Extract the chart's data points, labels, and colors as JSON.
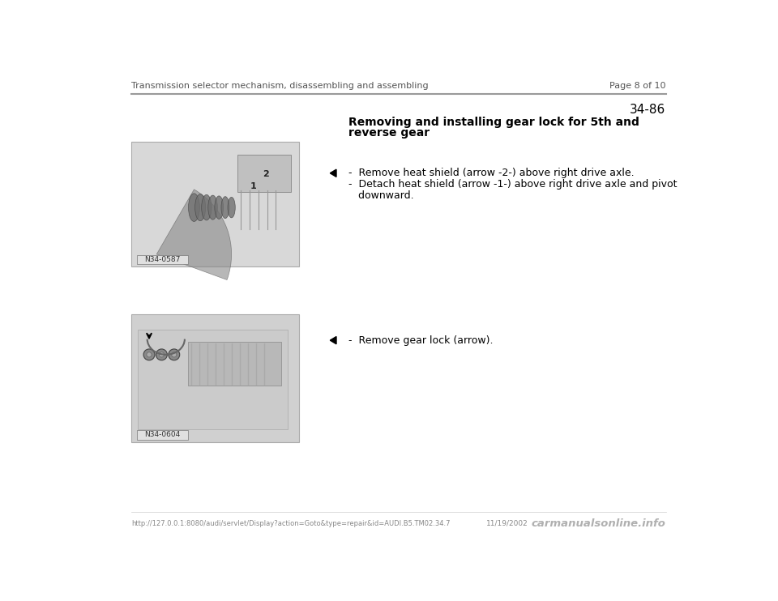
{
  "page_title_left": "Transmission selector mechanism, disassembling and assembling",
  "page_title_right": "Page 8 of 10",
  "section_number": "34-86",
  "section_heading_line1": "Removing and installing gear lock for 5th and",
  "section_heading_line2": "reverse gear",
  "bullet1_line1": "-  Remove heat shield (arrow -2-) above right drive axle.",
  "bullet1_line2": "-  Detach heat shield (arrow -1-) above right drive axle and pivot",
  "bullet1_line3": "   downward.",
  "bullet2_line1": "-  Remove gear lock (arrow).",
  "image1_label": "N34-0587",
  "image2_label": "N34-0604",
  "footer_url": "http://127.0.0.1:8080/audi/servlet/Display?action=Goto&type=repair&id=AUDI.B5.TM02.34.7",
  "footer_date": "11/19/2002",
  "footer_watermark": "carmanualsonline.info",
  "bg_color": "#ffffff",
  "text_color": "#000000",
  "header_line_color": "#999999"
}
